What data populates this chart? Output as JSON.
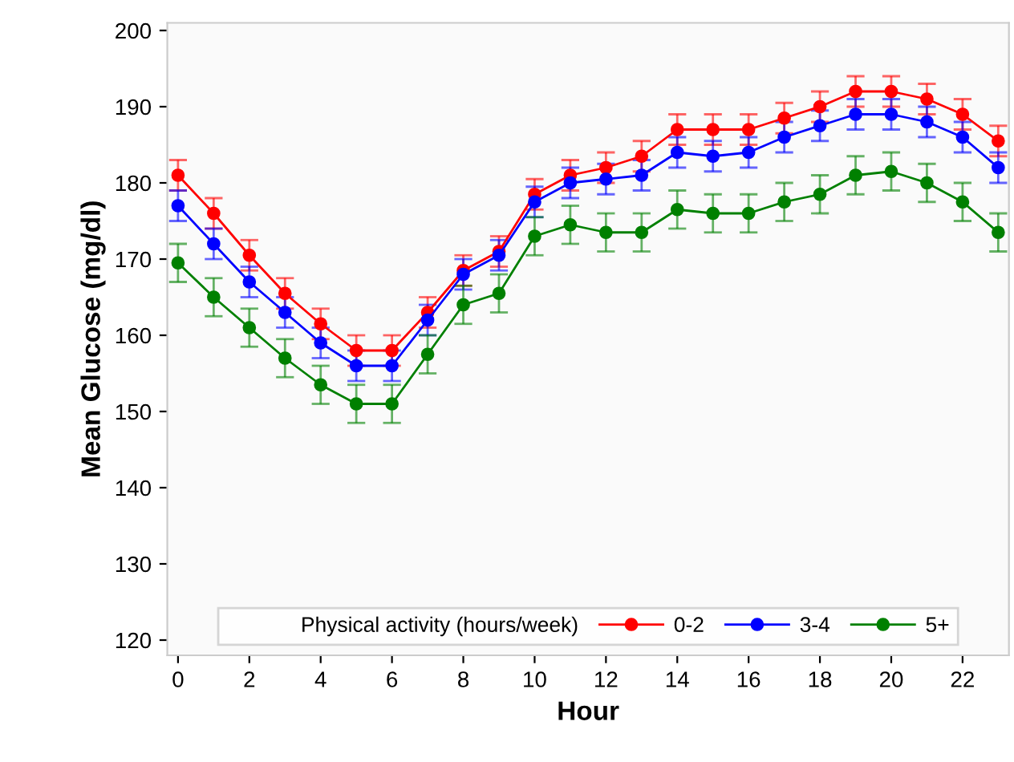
{
  "chart_data": {
    "type": "line",
    "xlabel": "Hour",
    "ylabel": "Mean Glucose (mg/dl)",
    "legend_title": "Physical activity (hours/week)",
    "x": [
      0,
      1,
      2,
      3,
      4,
      5,
      6,
      7,
      8,
      9,
      10,
      11,
      12,
      13,
      14,
      15,
      16,
      17,
      18,
      19,
      20,
      21,
      22,
      23
    ],
    "series": [
      {
        "name": "0-2",
        "color": "#ff0000",
        "values": [
          181,
          176,
          170.5,
          165.5,
          161.5,
          158,
          158,
          163,
          168.5,
          171,
          178.5,
          181,
          182,
          183.5,
          187,
          187,
          187,
          188.5,
          190,
          192,
          192,
          191,
          189,
          185.5
        ],
        "errors": [
          2,
          2,
          2,
          2,
          2,
          2,
          2,
          2,
          2,
          2,
          2,
          2,
          2,
          2,
          2,
          2,
          2,
          2,
          2,
          2,
          2,
          2,
          2,
          2
        ]
      },
      {
        "name": "3-4",
        "color": "#0000ff",
        "values": [
          177,
          172,
          167,
          163,
          159,
          156,
          156,
          162,
          168,
          170.5,
          177.5,
          180,
          180.5,
          181,
          184,
          183.5,
          184,
          186,
          187.5,
          189,
          189,
          188,
          186,
          182
        ],
        "errors": [
          2,
          2,
          2,
          2,
          2,
          2,
          2,
          2,
          2,
          2,
          2,
          2,
          2,
          2,
          2,
          2,
          2,
          2,
          2,
          2,
          2,
          2,
          2,
          2
        ]
      },
      {
        "name": "5+",
        "color": "#008000",
        "values": [
          169.5,
          165,
          161,
          157,
          153.5,
          151,
          151,
          157.5,
          164,
          165.5,
          173,
          174.5,
          173.5,
          173.5,
          176.5,
          176,
          176,
          177.5,
          178.5,
          181,
          181.5,
          180,
          177.5,
          173.5
        ],
        "errors": [
          2.5,
          2.5,
          2.5,
          2.5,
          2.5,
          2.5,
          2.5,
          2.5,
          2.5,
          2.5,
          2.5,
          2.5,
          2.5,
          2.5,
          2.5,
          2.5,
          2.5,
          2.5,
          2.5,
          2.5,
          2.5,
          2.5,
          2.5,
          2.5
        ]
      }
    ],
    "xlim": [
      -0.3,
      23.3
    ],
    "xticks": [
      0,
      2,
      4,
      6,
      8,
      10,
      12,
      14,
      16,
      18,
      20,
      22
    ],
    "ylim": [
      118,
      201
    ],
    "yticks": [
      120,
      130,
      140,
      150,
      160,
      170,
      180,
      190,
      200
    ],
    "marker": "circle",
    "line_style": "solid",
    "legend": "bottom",
    "grid": false
  }
}
